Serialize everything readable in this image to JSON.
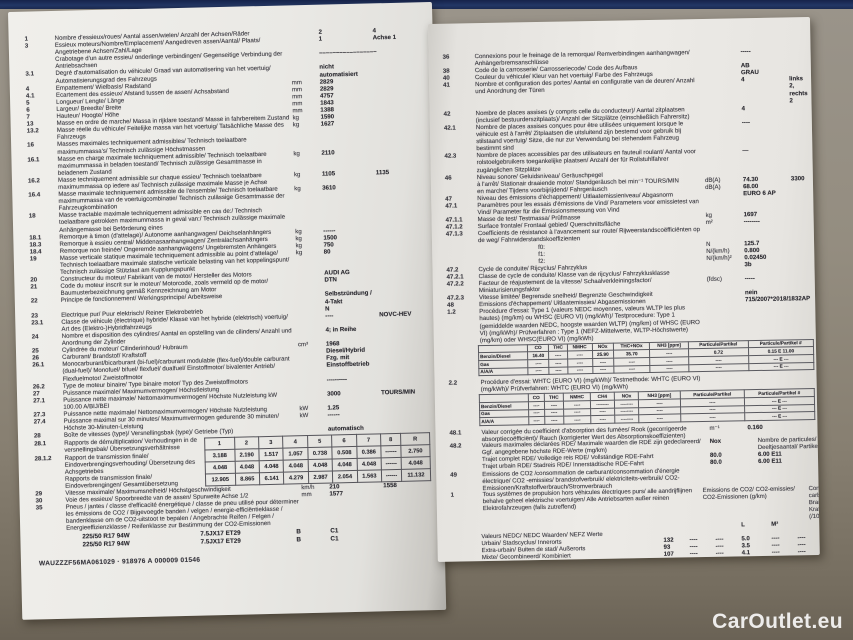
{
  "desk": {
    "watermark": "CarOutlet.eu"
  },
  "document": {
    "left_page": {
      "rows": [
        {
          "n": "1",
          "l": "Nombre d'essieux/roues/ Aantal assen/wielen/ Anzahl der Achsen/Räder",
          "v": "2",
          "v2": "4"
        },
        {
          "n": "3",
          "l": "Essieux moteurs/Nombre/Emplacement/ Aangedreven assen/Aantal/ Plaats/ Angetriebene Achsen/Zahl/Lage",
          "v": "1",
          "v2": "Achse 1"
        },
        {
          "n": "",
          "l": "Crabotage d'un autre essieu/ onderlinge verbindingen/ Gegenseitige Verbindung der Antriebsachsen",
          "v": "–––––––––––––––––"
        },
        {
          "n": "3.1",
          "l": "Degré d'automatisation du véhicule/ Graad van automatisering van het voertuig/ Automatisierungsgrad des Fahrzeugs",
          "v": "nicht automatisiert"
        },
        {
          "n": "4",
          "l": "Empattement/ Wielbasis/ Radstand",
          "u": "mm",
          "v": "2829"
        },
        {
          "n": "4.1",
          "l": "Ecartement des essieux/ Afstand tussen de assen/ Achsabstand",
          "u": "mm",
          "v": "2829"
        },
        {
          "n": "5",
          "l": "Longueur/ Lengte/ Länge",
          "u": "mm",
          "v": "4757"
        },
        {
          "n": "6",
          "l": "Largeur/ Breedte/ Breite",
          "u": "mm",
          "v": "1843"
        },
        {
          "n": "7",
          "l": "Hauteur/ Hoogte/ Höhe",
          "u": "mm",
          "v": "1388"
        },
        {
          "n": "13",
          "l": "Masse en ordre de marche/ Massa in rijklare toestand/ Masse in fahrbereitem Zustand",
          "u": "kg",
          "v": "1590"
        },
        {
          "n": "13.2",
          "l": "Masse réelle du véhicule/ Feitelijke massa van het voertuig/ Tatsächliche Masse des Fahrzeugs",
          "u": "kg",
          "v": "1627"
        },
        {
          "n": "16",
          "l": "Masses maximales techniquement admissibles/ Technisch toelaatbare maximummassa's/ Technisch zulässige Höchstmassen"
        },
        {
          "n": "16.1",
          "l": "Masse en charge maximale techniquement admissible/ Technisch toelaatbare maximummassa in beladen toestand/ Technisch zulässige Gesamtmasse in beladenem Zustand",
          "u": "kg",
          "v": "2110"
        },
        {
          "n": "16.2",
          "l": "Masse techniquement admissible sur chaque essieu/ Technisch toelaatbare maximummassa op iedere as/ Technisch zulässige maximale Masse je Achse",
          "u": "kg",
          "v": "1105",
          "v2": "1135"
        },
        {
          "n": "16.4",
          "l": "Masse maximale techniquement admissible de l'ensemble/ Technisch toelaatbare maximummassa van de voertuigcombinatie/ Technisch zulässige Gesamtmasse der Fahrzeugkombination",
          "u": "kg",
          "v": "3610"
        },
        {
          "n": "18",
          "l": "Masse tractable maximale techniquement admissible en cas de:/ Technisch toelaatbare getrokken maximummassa in geval van:/ Technisch zulässige maximale Anhängemasse bei Beförderung eines"
        },
        {
          "n": "18.1",
          "l": "Remorque à timon (d'attelage)/ Autonome aanhangwagen/ Deichselanhängers",
          "u": "kg",
          "v": "------"
        },
        {
          "n": "18.3",
          "l": "Remorque à essieu central/ Middenasaanhangwagen/ Zentralachsanhängers",
          "u": "kg",
          "v": "1500"
        },
        {
          "n": "18.4",
          "l": "Remorque non freinée/ Ongeremde aanhangwagens/ Ungebremsten Anhängers",
          "u": "kg",
          "v": "750"
        },
        {
          "n": "19",
          "l": "Masse verticale statique maximale techniquement admissible au point d'attelage/ Technisch toelaatbare maximale statische verticale belasting van het koppelingspunt/ Technisch zulässige Stützlast am Kupplungspunkt",
          "u": "kg",
          "v": "80"
        },
        {
          "n": "20",
          "l": "Constructeur du moteur/ Fabrikant van de motor/ Hersteller des Motors",
          "v": "AUDI AG"
        },
        {
          "n": "21",
          "l": "Code du moteur inscrit sur le moteur/ Motorcode, zoals vermeld op de motor/ Baumusterbezeichnung gemäß Kennzeichnung am Motor",
          "v": "DTN"
        },
        {
          "n": "22",
          "l": "Principe de fonctionnement/ Werkingsprincipe/ Arbeitsweise",
          "v": "Selbstzündung / 4-Takt"
        },
        {
          "n": "23",
          "l": "Electrique pur/ Puur elektrisch/ Reiner Elektrobetrieb",
          "v": "N"
        },
        {
          "n": "23.1",
          "l": "Classe de véhicule (électrique) hybride/ Klasse van het hybride (elektrisch) voertuig/ Art des (Elektro-)Hybridfahrzeugs",
          "v": "----",
          "v2": "NOVC-HEV"
        },
        {
          "n": "24",
          "l": "Nombre et disposition des cylindres/ Aantal en opstelling van de cilinders/ Anzahl und Anordnung der Zylinder",
          "v": "4; in Reihe"
        },
        {
          "n": "25",
          "l": "Cylindrée du moteur/ Cilinderinhoud/ Hubraum",
          "u": "cm³",
          "v": "1968"
        },
        {
          "n": "26",
          "l": "Carburant/ Brandstof/ Kraftstoff",
          "v": "Diesel/Hybrid"
        },
        {
          "n": "26.1",
          "l": "Monocarburant/bicarburant (bi-fuel)/carburant modulable (flex-fuel)/double carburant (dual-fuel)/ Monofuel/ bifuel/ flexfuel/ dualfuel/ Einstoffmotor/ bivalenter Antrieb/ Flexfuelmotor/ Zweistoffmotor",
          "v": "Fzg. mit Einstoffbetrieb"
        },
        {
          "n": "26.2",
          "l": "Type de moteur binaire/ Type binaire motor/ Typ des Zweistoffmotors",
          "v": "----------"
        },
        {
          "n": "27",
          "l": "Puissance maximale/ Maximumvermogen/ Höchstleistung"
        },
        {
          "n": "27.1",
          "l": "Puissance nette maximale/ Nettomaximumvermogen/ Höchste Nutzleistung kW 100.00 A/BIJ/BEI",
          "v": "3000",
          "v2": "TOURS/MIN"
        },
        {
          "n": "27.3",
          "l": "Puissance nette maximale/ Nettomaximumvermogen/ Höchste Nutzleistung",
          "u": "kW",
          "v": "1.25"
        },
        {
          "n": "27.4",
          "l": "Puissance maximal sur 30 minutes/ Maximumvermogen gedurende 30 minuten/ Höchste 30-Minuten-Leistung",
          "u": "kW",
          "v": "------"
        }
      ],
      "gearbox": {
        "type_row": {
          "n": "28",
          "l": "Boîte de vitesses (type)/ Versnellingsbak (type)/ Getriebe (Typ)",
          "v": "automatisch"
        },
        "labels": [
          {
            "n": "28.1",
            "l": "Rapports de démultiplication/ Verhoudingen in de versnellingsbak/ Übersetzungsverhältnisse"
          },
          {
            "n": "28.1.2",
            "l": "Rapport de transmission finale/ Eindoverbrengingsverhouding/ Übersetzung des Achsgetriebes"
          },
          {
            "n": "",
            "l": "Rapports de transmission finale/ Eindoverbrengingen/ Gesamtübersetzung"
          }
        ],
        "headers": [
          "1",
          "2",
          "3",
          "4",
          "5",
          "6",
          "7",
          "8",
          "R"
        ],
        "rows": [
          [
            "3.188",
            "2.190",
            "1.517",
            "1.057",
            "0.738",
            "0.508",
            "0.386",
            "------",
            "2.750"
          ],
          [
            "4.048",
            "4.048",
            "4.048",
            "4.048",
            "4.048",
            "4.048",
            "4.048",
            "------",
            "4.048"
          ],
          [
            "12.905",
            "8.865",
            "6.141",
            "4.279",
            "2.987",
            "2.054",
            "1.563",
            "------",
            "11.132"
          ]
        ]
      },
      "speed_row": {
        "n": "29",
        "l": "Vitesse maximale/ Maximumsnelheid/ Höchstgeschwindigkeit",
        "u": "km/h",
        "v": "210",
        "v2": "1558"
      },
      "track_row": {
        "n": "30",
        "l": "Voie des essieux/ Spoorbreedte van de assen/ Spurweite Achse 1/2",
        "u": "mm",
        "v": "1577"
      },
      "tyres": {
        "n": "35",
        "label": "Pneus / jantes / classe d'efficacité énergétique / classe de pneu utilisé pour déterminer les émissions de CO2 / Bijgevoegde banden / velgen / energie-efficiëntieklasse / bandenklasse om de CO2-uitstoot te bepalen / Angebrachte Reifen / Felgen / Energieeffizienzklasse / Reifenklasse zur Bestimmung der CO2-Emissionen",
        "lines": [
          [
            "225/50 R17 94W",
            "7.5JX17 ET29",
            "B",
            "C1"
          ],
          [
            "225/50 R17 94W",
            "7.5JX17 ET29",
            "B",
            "C1"
          ]
        ]
      },
      "footer_id": "WAUZZZF56MA061029 · 918976 A 000009    01546"
    },
    "right_page": {
      "rows_top": [
        {
          "n": "36",
          "l": "Connexions pour le freinage de la remorque/ Remverbindingen aanhangwagen/ Anhängerbremsanschlüsse",
          "v": "-----"
        },
        {
          "n": "38",
          "l": "Code de la carrosserie/ Carrosseriecode/ Code des Aufbaus",
          "v": "AB"
        },
        {
          "n": "40",
          "l": "Couleur du véhicule/ Kleur van het voertuig/ Farbe des Fahrzeugs",
          "v": "GRAU"
        },
        {
          "n": "41",
          "l": "Nombre et configuration des portes/ Aantal en configuratie van de deuren/ Anzahl und Anordnung der Türen",
          "v": "4",
          "v2": "links 2, rechts 2"
        },
        {
          "n": "42",
          "l": "Nombre de places assises (y compris celle du conducteur)/ Aantal zitplaatsen (inclusief bestuurderszitplaats)/ Anzahl der Sitzplätze (einschließlich Fahrersitz)",
          "v": "4"
        },
        {
          "n": "42.1",
          "l": "Nombre de places assises conçues pour être utilisées uniquement lorsque le véhicule est à l'arrêt/ Zitplaatsen die uitsluitend zijn bestemd voor gebruik bij stilstaand voertuig/ Sitze, die nur zur Verwendung bei stehendem Fahrzeug bestimmt sind",
          "v": "----"
        },
        {
          "n": "42.3",
          "l": "Nombre de places accessibles par des utilisateurs en fauteuil roulant/ Aantal voor rolstoelgebruikers toegankelijke plaatsen/ Anzahl der für Rollstuhlfahrer zugänglichen Sitzplätze",
          "v": "—"
        },
        {
          "n": "46",
          "l": "Niveau sonore/ Geluidsniveau/ Geräuschpegel"
        },
        {
          "n": "",
          "l": "à l'arrêt/ Stationair draaiende motor/ Standgeräusch bei min⁻¹ TOURS/MIN",
          "u": "dB(A)",
          "v": "74.30",
          "v2": "3300"
        },
        {
          "n": "",
          "l": "en marche/ Tijdens voorbijrijdend/ Fahrgeräusch",
          "u": "dB(A)",
          "v": "68.00"
        },
        {
          "n": "47",
          "l": "Niveau des émissions d'échappement/ Uitlaatemissieniveau/ Abgasnorm",
          "v": "EURO 6 AP"
        },
        {
          "n": "47.1",
          "l": "Paramètres pour les essais d'émissions de Vind/ Parameters voor emissietest van Vind/ Parameter für die Emissionsmessung von Vind"
        },
        {
          "n": "47.1.1",
          "l": "Masse de test/ Testmassa/ Prüfmasse",
          "u": "kg",
          "v": "1697"
        },
        {
          "n": "47.1.2",
          "l": "Surface frontale/ Frontaal gebied/ Querschnittsfläche",
          "u": "m²",
          "v": "--------"
        },
        {
          "n": "47.1.3",
          "l": "Coefficients de résistance à l'avancement sur route/ Rijweerstandscoëfficiënten op de weg/ Fahrwiderstandskoeffizienten"
        },
        {
          "n": "",
          "l": "f0:",
          "u": "N",
          "v": "125.7",
          "ind": 60
        },
        {
          "n": "",
          "l": "f1:",
          "u": "N/(km/h)",
          "v": "0.800",
          "ind": 60
        },
        {
          "n": "",
          "l": "f2:",
          "u": "N/(km/h)²",
          "v": "0.02450",
          "ind": 60
        },
        {
          "n": "47.2",
          "l": "Cycle de conduite/ Rijcyclus/ Fahrzyklus",
          "v": "3b"
        },
        {
          "n": "47.2.1",
          "l": "Classe de cycle de conduite/ Klasse van de rijcyclus/ Fahrzyklusklasse"
        },
        {
          "n": "47.2.2",
          "l": "Facteur de réajustement de la vitesse/ Schaalverkleiningsfactor/ Miniaturisierungsfaktor",
          "u": "(fdsc)",
          "v": "-----"
        },
        {
          "n": "47.2.3",
          "l": "Vitesse limitée/ Begrensde snelheid/ Begrenzte Geschwindigkeit",
          "v": "nein"
        },
        {
          "n": "48",
          "l": "Emissions d'échappement/ Uitlaatemissies/ Abgasemissionen",
          "v": "715/2007*2018/1832AP"
        }
      ],
      "emissions_t1": {
        "n": "1.2",
        "label": "Procédure d'essai: Type 1 (valeurs NEDC moyennes, valeurs WLTP les plus hautes) (mg/km) ou WHSC (EURO VI) (mg/kWh)/ Testprocedure: Type 1 (gemiddelde waarden NEDC, hoogste waarden WLTP) (mg/km) of WHSC (EURO VI) (mg/kWh)/ Prüfverfahren : Type 1 (NEFZ-Mittelwerte, WLTP-Höchstwerte) (mg/km) oder WHSC(EURO VI) (mg/kWh)",
        "cols": [
          "",
          "CO",
          "THC",
          "NMHC",
          "NOx",
          "THC+NOx",
          "NH3 [ppm]",
          "Particule/Partikel",
          "Particule/Partikel #"
        ],
        "rows": [
          [
            "Benzin/Diesel",
            "16.40",
            "----",
            "----",
            "25.90",
            "35.70",
            "----",
            "0.72",
            "0.15 E 11.00"
          ],
          [
            "Gas",
            "----",
            "----",
            "----",
            "----",
            "----",
            "----",
            "----",
            "--- E ---"
          ],
          [
            "A/A/A",
            "----",
            "----",
            "----",
            "----",
            "----",
            "----",
            "----",
            "--- E ---"
          ]
        ]
      },
      "emissions_t2": {
        "n": "2.2",
        "label": "Procédure d'essai: WHTC (EURO VI) (mg/kWh)/ Testmethode: WHTC (EURO VI) (mg/kWh)/ Prüfverfahren: WHTC (EURO VI) (mg/kWh)",
        "cols": [
          "",
          "CO",
          "THC",
          "NMHC",
          "CH4",
          "NOx",
          "NH3 [ppm]",
          "Particule/Partikel",
          "Particule/Partikel #"
        ],
        "rows": [
          [
            "Benzin/Diesel",
            "----",
            "----",
            "----",
            "--------",
            "--------",
            "----",
            "----",
            "--- E ---"
          ],
          [
            "Gas",
            "----",
            "----",
            "----",
            "----",
            "--------",
            "----",
            "----",
            "--- E ---"
          ],
          [
            "A/A/A",
            "----",
            "----",
            "----",
            "----",
            "--------",
            "----",
            "----",
            "--- E ---"
          ]
        ]
      },
      "row_48_1": {
        "n": "48.1",
        "l": "Valeur corrigée du coefficient d'absorption des fumées/ Rook (gecorrigeerde absorptiecoëfficiënt)/ Rauch (korrigierter Wert des Absorptionskoeffizienten)",
        "u": "m⁻¹",
        "v": "0.160"
      },
      "rde": {
        "n": "48.2",
        "label": "Valeurs maximales déclarées RDE/ Maximale waarden die RDE zijn gedeclareerd/ Ggf. angegebene höchste RDE-Werte (mg/km)",
        "col1": "Nox",
        "col2": "Nombre de particules/ Deeltjesaantal/ Partikelzahl",
        "col3": "Exp.",
        "rows": [
          {
            "l": "Trajet complet RDE/ Volledige reis RDE/ Vollständige RDE-Fahrt",
            "v1": "80.0",
            "v2": "6.00 E11"
          },
          {
            "l": "Trajet urbain RDE/ Stadreis RDE/ Innerstädtische RDE-Fahrt",
            "v1": "80.0",
            "v2": "6.00 E11"
          }
        ]
      },
      "co2": {
        "n": "49",
        "label": "Emissions de CO2 /consommation de carburant/consommation d'énergie électrique/ CO2 -emissies/ brandstofverbruik/ elektriciteits-verbruik/ CO2-Emissionen/Kraftstoffverbrauch/Stromverbrauch",
        "sec1_n": "1",
        "sec1_label": "Tous systèmes de propulsion hors véhicules électriques purs/ alle aandrijflijnen behalve geheel elektrische voertuigen/ Alle Antriebsarten außer reinen Elektrofahrzeugen (falls zutreffend)",
        "head_co2": "Emissions de CO2/ CO2-emissies/ CO2-Emissionen (g/km)",
        "head_fuel": "Consommation de carburant/ Brandstofverbruik/ Kraftstoffverbrauch (/100km)",
        "subhead": [
          "",
          "",
          "",
          "L",
          "M³",
          ""
        ],
        "rows": [
          {
            "l": "Valeurs NEDC/ NEDC Waarden/ NEFZ Werte",
            "vals": [
              "",
              "",
              "",
              "",
              "",
              ""
            ]
          },
          {
            "l": "Urbain/ Stadscyclus/ Innerorts",
            "vals": [
              "132",
              "----",
              "----",
              "5.0",
              "----",
              "----"
            ]
          },
          {
            "l": "Extra-urbain/ Buiten de stad/ Außerorts",
            "vals": [
              "93",
              "----",
              "----",
              "3.5",
              "----",
              "----"
            ]
          },
          {
            "l": "Mixte/ Gecombineerd/ Kombiniert",
            "vals": [
              "107",
              "----",
              "----",
              "4.1",
              "----",
              "----"
            ]
          },
          {
            "l": "Pondéré, Mixte/ Gewogen, Gecombineerd/ Gewichtet, Kombiniert",
            "vals": [
              "----",
              "----",
              "----",
              "----",
              "----",
              "----"
            ]
          },
          {
            "l": "Facteur de déviation/ Afwijkingsfactor/ Abweichungsfaktor",
            "vals": [
              "--------",
              "",
              "",
              "",
              "",
              ""
            ]
          },
          {
            "l": "Facteur de vérification/ Verificatiefactor/ Differenzierungsfaktor",
            "vals": [
              "",
              "",
              "",
              "",
              "",
              ""
            ]
          }
        ],
        "sec2_n": "2",
        "sec2_label": "Véhicules électriques purs et véhicules électriques hybrides rechargeables de l'extérieur/ Puur elektrische voertuigen en extern oplaadbare hybride elektrische voertuigen/ Reine Elektrofahrzeuge und extern aufladbare Hybridelektrofahrzeuge",
        "rows2": [
          {
            "l": "Consommation d'énergie électrique (pondérée, combinée)/ Elektriciteitsverbruik (gewogen, gecombineerd)/ Stromverbrauch (gewichtet, kombiniert)",
            "u": "Wh/km",
            "v": "--------"
          },
          {
            "l": "Autonomie en mode électrique/ Elektrische actieradius/ Elektrische Reichweite",
            "u": "km",
            "v": "--------"
          }
        ]
      }
    }
  }
}
